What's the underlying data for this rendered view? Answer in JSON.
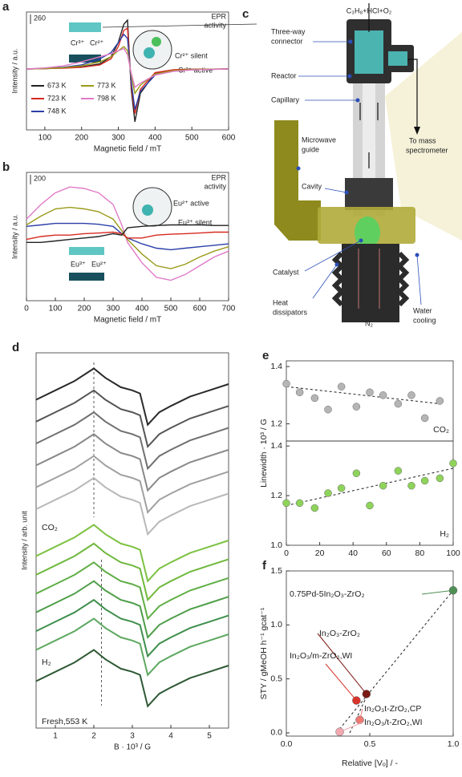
{
  "chart_data": [
    {
      "type": "line",
      "panel_label": "a",
      "xlabel": "Magnetic field / mT",
      "ylabel": "Intensity / a.u.",
      "x": [
        50,
        100,
        150,
        200,
        250,
        280,
        300,
        315,
        325,
        335,
        345,
        360,
        400,
        450,
        500,
        600
      ],
      "xlim": [
        50,
        600
      ],
      "xticks": [
        100,
        200,
        300,
        400,
        500,
        600
      ],
      "ylim": [
        -300,
        280
      ],
      "scale_bar": 260,
      "series": [
        {
          "name": "673 K",
          "color": "#222222",
          "values": [
            0,
            2,
            5,
            10,
            25,
            60,
            130,
            220,
            240,
            -100,
            -260,
            -120,
            -20,
            -5,
            -2,
            0
          ]
        },
        {
          "name": "723 K",
          "color": "#d62a20",
          "values": [
            0,
            2,
            4,
            8,
            20,
            50,
            110,
            190,
            200,
            -80,
            -220,
            -100,
            -18,
            -4,
            -2,
            0
          ]
        },
        {
          "name": "748 K",
          "color": "#2b3fa8",
          "values": [
            0,
            3,
            8,
            20,
            50,
            80,
            130,
            170,
            150,
            -60,
            -200,
            -110,
            -30,
            -10,
            -4,
            0
          ]
        },
        {
          "name": "773 K",
          "color": "#9a9a1a",
          "values": [
            0,
            2,
            6,
            15,
            35,
            60,
            90,
            110,
            90,
            -30,
            -120,
            -80,
            -25,
            -8,
            -3,
            0
          ]
        },
        {
          "name": "798 K",
          "color": "#e07ac8",
          "values": [
            0,
            5,
            15,
            35,
            60,
            75,
            90,
            100,
            70,
            -20,
            -90,
            -70,
            -30,
            -12,
            -5,
            0
          ]
        }
      ],
      "annotations": [
        "EPR",
        "activity",
        "Cr³⁺",
        "Cr²⁺",
        "Cr²⁺ silent",
        "Cr³⁺ active"
      ]
    },
    {
      "type": "line",
      "panel_label": "b",
      "xlabel": "Magnetic field / mT",
      "ylabel": "Intensity / a.u.",
      "x": [
        0,
        50,
        100,
        150,
        200,
        250,
        300,
        330,
        350,
        400,
        450,
        500,
        550,
        600,
        650,
        700
      ],
      "xlim": [
        0,
        700
      ],
      "xticks": [
        0,
        100,
        200,
        300,
        400,
        500,
        600,
        700
      ],
      "ylim": [
        -220,
        220
      ],
      "scale_bar": 200,
      "series": [
        {
          "color": "#e07ac8",
          "values": [
            60,
            110,
            150,
            170,
            165,
            150,
            110,
            40,
            -20,
            -90,
            -140,
            -150,
            -130,
            -100,
            -70,
            -50
          ]
        },
        {
          "color": "#9a9a1a",
          "values": [
            40,
            70,
            95,
            100,
            95,
            85,
            60,
            20,
            -10,
            -60,
            -100,
            -110,
            -95,
            -70,
            -50,
            -35
          ]
        },
        {
          "color": "#2b3fa8",
          "values": [
            35,
            40,
            45,
            45,
            45,
            42,
            35,
            10,
            -5,
            -25,
            -40,
            -45,
            -40,
            -35,
            -30,
            -25
          ]
        },
        {
          "color": "#d62a20",
          "values": [
            -10,
            0,
            5,
            5,
            10,
            12,
            15,
            10,
            -5,
            -5,
            5,
            8,
            10,
            12,
            15,
            15
          ]
        },
        {
          "color": "#222222",
          "values": [
            -20,
            -20,
            -15,
            -10,
            -5,
            0,
            10,
            5,
            30,
            35,
            38,
            40,
            40,
            40,
            38,
            38
          ]
        }
      ],
      "annotations": [
        "EPR",
        "activity",
        "Eu²⁺ active",
        "Eu³⁺ silent",
        "Eu³⁺",
        "Eu²⁺"
      ]
    },
    {
      "type": "line",
      "panel_label": "d",
      "xlabel": "B · 10³ / G",
      "ylabel": "Intensity / arb. unit",
      "x": [
        0.5,
        1,
        1.5,
        2,
        2.3,
        2.7,
        3,
        3.2,
        3.4,
        3.7,
        4,
        4.5,
        5,
        5.5
      ],
      "xlim": [
        0.5,
        5.5
      ],
      "xticks": [
        1,
        2,
        3,
        4,
        5
      ],
      "ylim": [
        -10,
        110
      ],
      "reference_x": [
        2.0,
        2.2
      ],
      "series": [
        {
          "color": "#2a2a2a",
          "values": [
            95,
            98,
            101,
            105,
            102,
            99,
            98,
            97,
            87,
            91,
            93,
            96,
            98,
            100
          ]
        },
        {
          "color": "#555555",
          "values": [
            88,
            91,
            94,
            98,
            95,
            92,
            91,
            90,
            80,
            84,
            86,
            89,
            91,
            93
          ]
        },
        {
          "color": "#707070",
          "values": [
            81,
            84,
            87,
            91,
            88,
            85,
            84,
            83,
            73,
            77,
            79,
            82,
            84,
            86
          ]
        },
        {
          "color": "#888888",
          "values": [
            74,
            77,
            80,
            84,
            81,
            78,
            77,
            76,
            66,
            70,
            72,
            75,
            77,
            79
          ]
        },
        {
          "color": "#a0a0a0",
          "values": [
            67,
            70,
            73,
            77,
            74,
            71,
            70,
            69,
            59,
            63,
            65,
            68,
            70,
            72
          ]
        },
        {
          "color": "#b8b8b8",
          "values": [
            60,
            63,
            66,
            70,
            67,
            64,
            63,
            62,
            52,
            56,
            58,
            61,
            63,
            65
          ]
        },
        {
          "color": "#7cc242",
          "values": [
            45,
            48,
            51,
            55,
            52,
            49,
            48,
            47,
            37,
            41,
            43,
            46,
            48,
            50
          ]
        },
        {
          "color": "#6fb83c",
          "values": [
            39,
            42,
            45,
            49,
            46,
            43,
            42,
            41,
            31,
            35,
            37,
            40,
            42,
            44
          ]
        },
        {
          "color": "#5fae45",
          "values": [
            33,
            36,
            39,
            43,
            40,
            37,
            36,
            35,
            25,
            29,
            31,
            34,
            36,
            38
          ]
        },
        {
          "color": "#4f9e4a",
          "values": [
            27,
            30,
            33,
            37,
            34,
            31,
            30,
            29,
            19,
            23,
            25,
            28,
            30,
            32
          ]
        },
        {
          "color": "#3f8f4c",
          "values": [
            21,
            24,
            27,
            31,
            28,
            25,
            24,
            23,
            13,
            17,
            19,
            22,
            24,
            26
          ]
        },
        {
          "color": "#5da860",
          "values": [
            15,
            18,
            21,
            25,
            22,
            19,
            18,
            17,
            7,
            11,
            13,
            16,
            18,
            20
          ]
        },
        {
          "color": "#2f5a35",
          "values": [
            5,
            8,
            11,
            15,
            12,
            9,
            8,
            7,
            -3,
            1,
            3,
            6,
            8,
            10
          ]
        }
      ],
      "annotations": [
        "CO₂",
        "H₂",
        "Fresh,553 K"
      ]
    },
    {
      "type": "scatter",
      "panel_label": "e",
      "ylabel": "Linewidth · 10³ / G",
      "color": "#b5b5b5",
      "x": [
        0,
        8,
        17,
        25,
        33,
        42,
        50,
        58,
        67,
        75,
        83,
        92
      ],
      "values": [
        1.34,
        1.31,
        1.29,
        1.25,
        1.33,
        1.26,
        1.31,
        1.3,
        1.27,
        1.3,
        1.22,
        1.28
      ],
      "xlim": [
        0,
        100
      ],
      "ylim": [
        1.14,
        1.42
      ],
      "yticks": [
        1.2,
        1.4
      ],
      "trend": {
        "x": [
          0,
          92
        ],
        "y": [
          1.33,
          1.27
        ]
      },
      "annotations": [
        "CO₂"
      ]
    },
    {
      "type": "scatter",
      "color": "#8ed35a",
      "x": [
        0,
        8,
        17,
        25,
        33,
        42,
        50,
        58,
        67,
        75,
        83,
        92,
        100
      ],
      "values": [
        1.17,
        1.17,
        1.15,
        1.21,
        1.23,
        1.29,
        1.16,
        1.24,
        1.3,
        1.24,
        1.26,
        1.27,
        1.33
      ],
      "xlim": [
        0,
        100
      ],
      "xticks": [
        0,
        20,
        40,
        60,
        80,
        100
      ],
      "ylim": [
        1,
        1.42
      ],
      "yticks": [
        {
          "value": 1,
          "label": "1.0"
        },
        1.2,
        1.4
      ],
      "trend": {
        "x": [
          0,
          100
        ],
        "y": [
          1.16,
          1.31
        ]
      },
      "annotations": [
        "H₂"
      ]
    },
    {
      "type": "scatter",
      "panel_label": "f",
      "xlabel": "Relative [Vₒ] / -",
      "ylabel": "STY / gMeOH h⁻¹ gcat⁻¹",
      "x": [
        1.0,
        0.48,
        0.42,
        0.44,
        0.32
      ],
      "values": [
        1.32,
        0.36,
        0.3,
        0.12,
        0.01
      ],
      "colors": [
        "#4f8f55",
        "#7a1a14",
        "#d8342c",
        "#ec7a72",
        "#f3a8b0"
      ],
      "point_labels": [
        "0.75Pd-5In₂O₃-ZrO₂",
        "In₂O₃-ZrO₂",
        "In₂O₃/m-ZrO₂,WI",
        "In₂O₃t-ZrO₂,CP",
        "In₂O₃/t-ZrO₂,WI"
      ],
      "xlim": [
        0,
        1
      ],
      "xticks": [
        {
          "value": 0,
          "label": "0.0"
        },
        0.5,
        {
          "value": 1,
          "label": "1.0"
        }
      ],
      "ylim": [
        -0.03,
        1.5
      ],
      "yticks": [
        {
          "value": 0,
          "label": "0.0"
        },
        0.5,
        {
          "value": 1,
          "label": "1.0"
        },
        1.5
      ],
      "trend_lines": [
        {
          "x": [
            0.3,
            1.0
          ],
          "y": [
            0,
            1.32
          ]
        },
        {
          "x": [
            0.38,
            0.5
          ],
          "y": [
            0,
            0.4
          ]
        }
      ]
    }
  ],
  "diagram": {
    "panel_label": "c",
    "feed": "C₃H₈+HCl+O₂",
    "three_way_connector": [
      "Three-way",
      "connector"
    ],
    "reactor": "Reactor",
    "capillary": "Capillary",
    "microwave_guide": [
      "Microwave",
      "guide"
    ],
    "cavity": "Cavity",
    "catalyst": "Catalyst",
    "heat_dissipators": [
      "Heat",
      "dissipators"
    ],
    "n2": "N₂",
    "water_cooling": [
      "Water",
      "cooling"
    ],
    "mass_spectrometer": [
      "To mass",
      "spectrometer"
    ]
  }
}
